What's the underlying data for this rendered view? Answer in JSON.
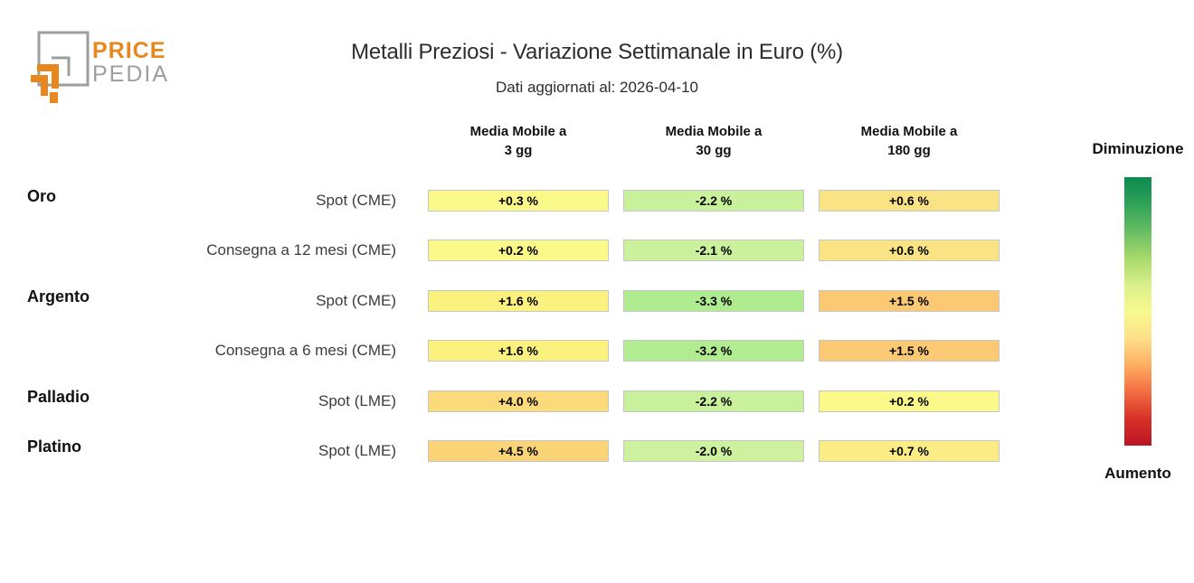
{
  "logo": {
    "text_top": "PRICE",
    "text_bottom": "PEDIA",
    "orange": "#E8871E",
    "gray": "#9E9E9E"
  },
  "title": "Metalli Preziosi - Variazione Settimanale in Euro (%)",
  "subtitle": "Dati aggiornati al: 2026-04-10",
  "columns": [
    {
      "line1": "Media Mobile a",
      "line2": "3 gg"
    },
    {
      "line1": "Media Mobile a",
      "line2": "30 gg"
    },
    {
      "line1": "Media Mobile a",
      "line2": "180 gg"
    }
  ],
  "rows": [
    {
      "metal": "Oro",
      "contract": "Spot (CME)",
      "cells": [
        {
          "value": "+0.3 %",
          "color": "#FCF98B"
        },
        {
          "value": "-2.2 %",
          "color": "#C9F09B"
        },
        {
          "value": "+0.6 %",
          "color": "#FAE385"
        }
      ]
    },
    {
      "metal": "",
      "contract": "Consegna a 12 mesi (CME)",
      "cells": [
        {
          "value": "+0.2 %",
          "color": "#FCF98B"
        },
        {
          "value": "-2.1 %",
          "color": "#CBF19D"
        },
        {
          "value": "+0.6 %",
          "color": "#FAE385"
        }
      ]
    },
    {
      "metal": "Argento",
      "contract": "Spot (CME)",
      "cells": [
        {
          "value": "+1.6 %",
          "color": "#FBF17E"
        },
        {
          "value": "-3.3 %",
          "color": "#AFEC90"
        },
        {
          "value": "+1.5 %",
          "color": "#FBC873"
        }
      ]
    },
    {
      "metal": "",
      "contract": "Consegna a 6 mesi (CME)",
      "cells": [
        {
          "value": "+1.6 %",
          "color": "#FBF17E"
        },
        {
          "value": "-3.2 %",
          "color": "#B1EC91"
        },
        {
          "value": "+1.5 %",
          "color": "#FBC873"
        }
      ]
    },
    {
      "metal": "Palladio",
      "contract": "Spot (LME)",
      "cells": [
        {
          "value": "+4.0 %",
          "color": "#FBDA7C"
        },
        {
          "value": "-2.2 %",
          "color": "#C9F09B"
        },
        {
          "value": "+0.2 %",
          "color": "#FCF98B"
        }
      ]
    },
    {
      "metal": "Platino",
      "contract": "Spot (LME)",
      "cells": [
        {
          "value": "+4.5 %",
          "color": "#FAD476"
        },
        {
          "value": "-2.0 %",
          "color": "#CDF19E"
        },
        {
          "value": "+0.7 %",
          "color": "#FBEC85"
        }
      ]
    }
  ],
  "legend": {
    "top_label": "Diminuzione",
    "bottom_label": "Aumento",
    "gradient": [
      "#0D8A50",
      "#2FA258",
      "#66BD63",
      "#A6D96A",
      "#D9EF8B",
      "#F7FA8E",
      "#FEE08B",
      "#FDAE61",
      "#F46D43",
      "#D73027",
      "#BB1526"
    ]
  },
  "chart_data": {
    "type": "heatmap",
    "title": "Metalli Preziosi - Variazione Settimanale in Euro (%)",
    "subtitle": "Dati aggiornati al: 2026-04-10",
    "columns": [
      "Media Mobile a 3 gg",
      "Media Mobile a 30 gg",
      "Media Mobile a 180 gg"
    ],
    "row_groups": [
      "Oro",
      "Oro",
      "Argento",
      "Argento",
      "Palladio",
      "Platino"
    ],
    "row_contracts": [
      "Spot (CME)",
      "Consegna a 12 mesi (CME)",
      "Spot (CME)",
      "Consegna a 6 mesi (CME)",
      "Spot (LME)",
      "Spot (LME)"
    ],
    "values": [
      [
        0.3,
        -2.2,
        0.6
      ],
      [
        0.2,
        -2.1,
        0.6
      ],
      [
        1.6,
        -3.3,
        1.5
      ],
      [
        1.6,
        -3.2,
        1.5
      ],
      [
        4.0,
        -2.2,
        0.2
      ],
      [
        4.5,
        -2.0,
        0.7
      ]
    ],
    "unit": "%",
    "colorscale": "green (decrease) to yellow to red (increase), RdYlGn reversed",
    "legend_top": "Diminuzione",
    "legend_bottom": "Aumento"
  }
}
